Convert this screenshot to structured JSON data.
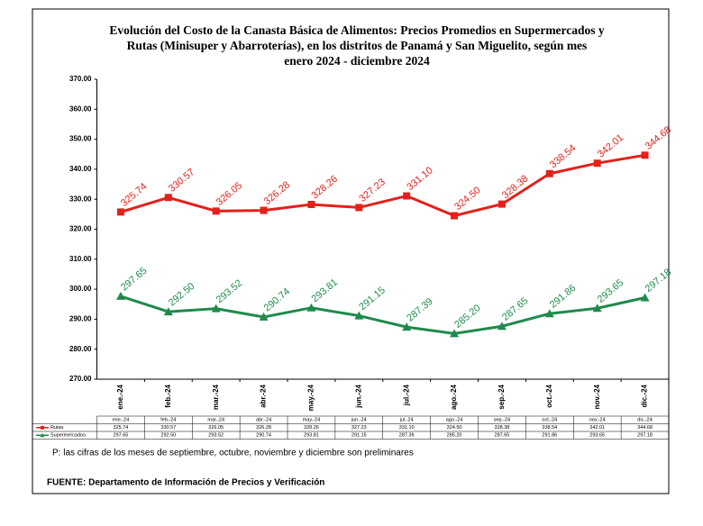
{
  "chart_data": {
    "type": "line",
    "title_lines": [
      "Evolución del Costo de la Canasta Básica de Alimentos: Precios Promedios en Supermercados y",
      "Rutas (Minisuper y Abarroterías), en  los   distritos de Panamá y San Miguelito,  según mes",
      "enero 2024 - diciembre 2024"
    ],
    "categories": [
      "ene.-24",
      "feb.-24",
      "mar.-24",
      "abr.-24",
      "may.-24",
      "jun.-24",
      "jul.-24",
      "ago.-24",
      "sep.-24",
      "oct.-24",
      "nov.-24",
      "dic.-24"
    ],
    "series": [
      {
        "name": "Rutas",
        "color": "#e3201b",
        "values": [
          325.74,
          330.57,
          326.05,
          326.28,
          328.26,
          327.23,
          331.1,
          324.5,
          328.38,
          338.54,
          342.01,
          344.68
        ],
        "value_labels": [
          "325.74",
          "330.57",
          "326.05",
          "326.28",
          "328.26",
          "327.23",
          "331.10",
          "324.50",
          "328.38",
          "338.54",
          "342.01",
          "344.68"
        ],
        "marker": "square"
      },
      {
        "name": "Supermercados",
        "color": "#1f8a4c",
        "values": [
          297.65,
          292.5,
          293.52,
          290.74,
          293.81,
          291.15,
          287.39,
          285.2,
          287.65,
          291.86,
          293.65,
          297.18
        ],
        "value_labels": [
          "297.65",
          "292.50",
          "293.52",
          "290.74",
          "293.81",
          "291.15",
          "287.39",
          "285.20",
          "287.65",
          "291.86",
          "293.65",
          "297.18"
        ],
        "marker": "triangle"
      }
    ],
    "ylim": [
      270,
      370
    ],
    "yticks": [
      {
        "value": 270,
        "label": "270.00"
      },
      {
        "value": 280,
        "label": "280.00"
      },
      {
        "value": 290,
        "label": "290.00"
      },
      {
        "value": 300,
        "label": "300.00"
      },
      {
        "value": 310,
        "label": "310.00"
      },
      {
        "value": 320,
        "label": "320.00"
      },
      {
        "value": 330,
        "label": "330.00"
      },
      {
        "value": 340,
        "label": "340.00"
      },
      {
        "value": 350,
        "label": "350.00"
      },
      {
        "value": 360,
        "label": "360.00"
      },
      {
        "value": 370,
        "label": "370.00"
      }
    ],
    "note": "P: las cifras de los meses de septiembre, octubre, noviembre y diciembre son preliminares",
    "source": "FUENTE: Departamento de Información de Precios y Verificación"
  }
}
